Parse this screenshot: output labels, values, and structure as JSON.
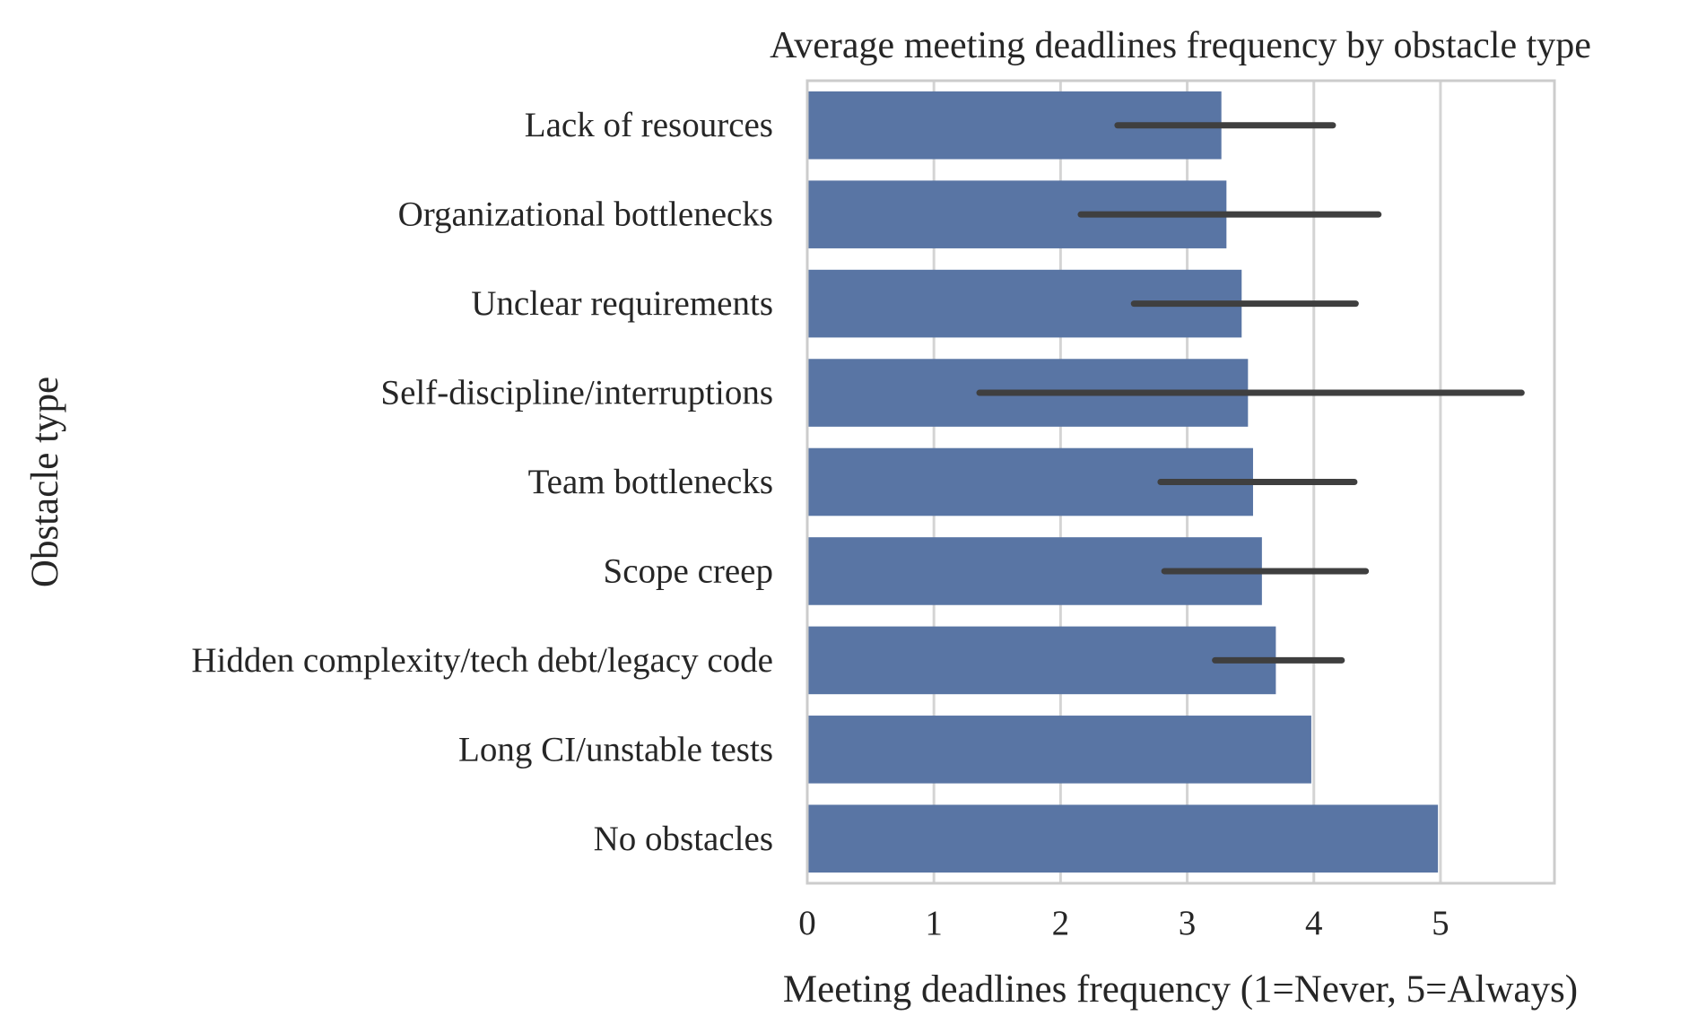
{
  "chart_data": {
    "type": "bar",
    "orientation": "horizontal",
    "title": "Average meeting deadlines frequency by obstacle type",
    "xlabel": "Meeting deadlines frequency (1=Never, 5=Always)",
    "ylabel": "Obstacle type",
    "xlim": [
      0,
      5.9
    ],
    "xticks": [
      0,
      1,
      2,
      3,
      4,
      5
    ],
    "grid": "vertical",
    "categories": [
      "Lack of resources",
      "Organizational bottlenecks",
      "Unclear requirements",
      "Self-discipline/interruptions",
      "Team bottlenecks",
      "Scope creep",
      "Hidden complexity/tech debt/legacy code",
      "Long CI/unstable tests",
      "No obstacles"
    ],
    "values": [
      3.27,
      3.31,
      3.43,
      3.48,
      3.52,
      3.59,
      3.7,
      3.98,
      4.98
    ],
    "error_low": [
      2.45,
      2.16,
      2.58,
      1.36,
      2.79,
      2.82,
      3.22,
      null,
      null
    ],
    "error_high": [
      4.15,
      4.51,
      4.33,
      5.64,
      4.32,
      4.41,
      4.22,
      null,
      null
    ],
    "colors": {
      "bar": "#5975a4",
      "error_bar": "#3f3f3f",
      "grid": "#d4d4d4",
      "frame": "#cccccc",
      "text": "#262626"
    }
  }
}
